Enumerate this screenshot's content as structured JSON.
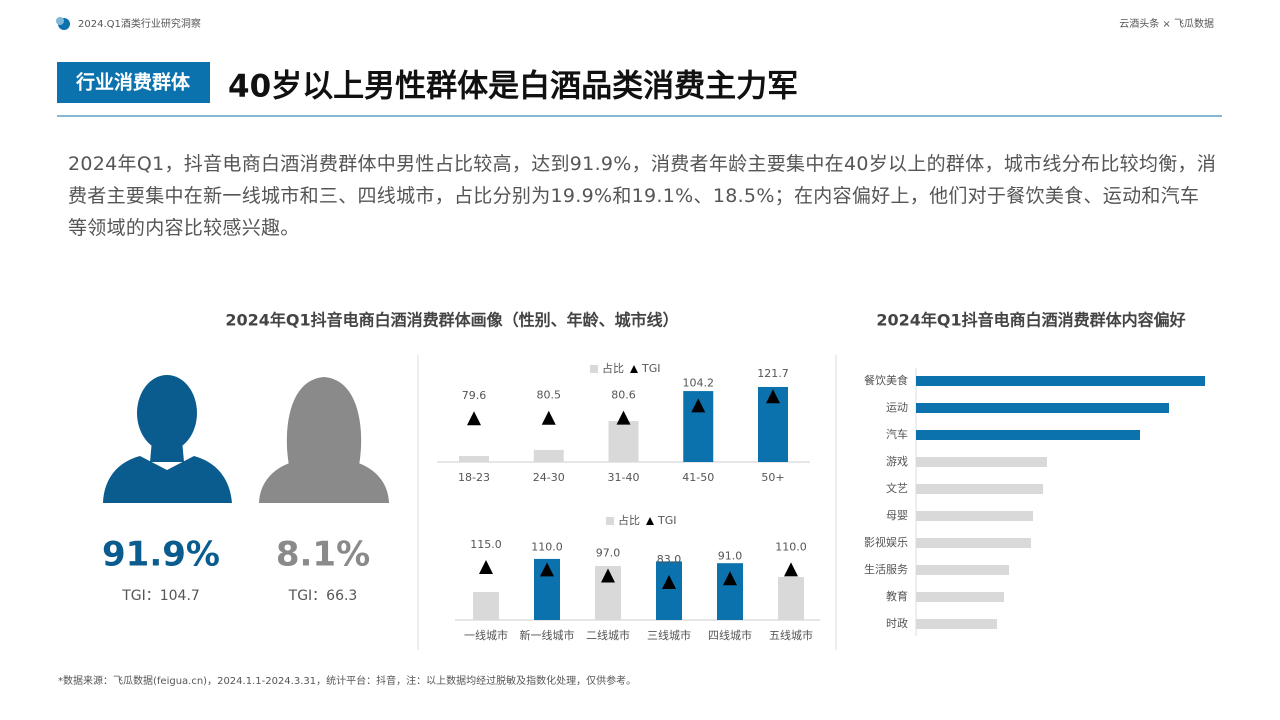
{
  "header": {
    "series_title": "2024.Q1酒类行业研究洞察",
    "brand": "云酒头条 × 飞瓜数据",
    "tag": "行业消费群体",
    "title": "40岁以上男性群体是白酒品类消费主力军"
  },
  "summary": "2024年Q1，抖音电商白酒消费群体中男性占比较高，达到91.9%，消费者年龄主要集中在40岁以上的群体，城市线分布比较均衡，消费者主要集中在新一线城市和三、四线城市，占比分别为19.9%和19.1%、18.5%；在内容偏好上，他们对于餐饮美食、运动和汽车等领域的内容比较感兴趣。",
  "profile_title": "2024年Q1抖音电商白酒消费群体画像（性别、年龄、城市线）",
  "gender": {
    "male": {
      "share": "91.9%",
      "tgi": "TGI：104.7",
      "color": "#0b5c8e"
    },
    "female": {
      "share": "8.1%",
      "tgi": "TGI：66.3",
      "color": "#8a8a8a"
    }
  },
  "footnote": "*数据来源：飞瓜数据(feigua.cn)，2024.1.1-2024.3.31，统计平台：抖音，注：以上数据均经过脱敏及指数化处理，仅供参考。",
  "chart_data": [
    {
      "type": "bar",
      "categories": [
        "18-23",
        "24-30",
        "31-40",
        "41-50",
        "50+"
      ],
      "series": [
        {
          "name": "占比",
          "color": "#d9d9d9",
          "colors": [
            "#d9d9d9",
            "#d9d9d9",
            "#d9d9d9",
            "#0b72ad",
            "#0b72ad"
          ],
          "values": [
            2.9,
            5.9,
            20,
            34.6,
            36.6
          ]
        },
        {
          "name": "TGI",
          "type": "marker",
          "color": "#000000",
          "values": [
            79.6,
            80.5,
            80.6,
            104.2,
            121.7
          ]
        }
      ]
    },
    {
      "type": "bar",
      "categories": [
        "一线城市",
        "新一线城市",
        "二线城市",
        "三线城市",
        "四线城市",
        "五线城市"
      ],
      "series": [
        {
          "name": "占比",
          "color": "#d9d9d9",
          "colors": [
            "#d9d9d9",
            "#0b72ad",
            "#d9d9d9",
            "#0b72ad",
            "#0b72ad",
            "#d9d9d9"
          ],
          "values": [
            9.1,
            19.9,
            17.6,
            19.1,
            18.5,
            14
          ]
        },
        {
          "name": "TGI",
          "type": "marker",
          "color": "#000000",
          "values": [
            115,
            110,
            97,
            83,
            91,
            110
          ],
          "value_labels": [
            "115.0",
            "110.0",
            "97.0",
            "83.0",
            "91.0",
            "110.0"
          ]
        }
      ]
    },
    {
      "type": "barh",
      "title": "2024年Q1抖音电商白酒消费群体内容偏好",
      "categories": [
        "餐饮美食",
        "运动",
        "汽车",
        "游戏",
        "文艺",
        "母婴",
        "影视娱乐",
        "生活服务",
        "教育",
        "时政"
      ],
      "values": [
        28.9,
        25.3,
        22.4,
        13.1,
        12.7,
        11.7,
        11.5,
        9.3,
        8.8,
        8.1
      ],
      "colors": [
        "#0b72ad",
        "#0b72ad",
        "#0b72ad",
        "#d9d9d9",
        "#d9d9d9",
        "#d9d9d9",
        "#d9d9d9",
        "#d9d9d9",
        "#d9d9d9",
        "#d9d9d9"
      ]
    }
  ]
}
